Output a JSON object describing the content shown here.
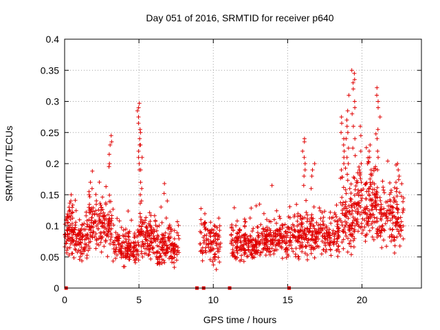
{
  "chart_data": {
    "type": "scatter",
    "title": "Day 051 of 2016, SRMTID for receiver p640",
    "xlabel": "GPS time / hours",
    "ylabel": "SRMTID / TECUs",
    "xlim": [
      0,
      24
    ],
    "ylim": [
      0,
      0.4
    ],
    "x_ticks": [
      0,
      5,
      10,
      15,
      20
    ],
    "x_tick_labels": [
      "0",
      "5",
      "10",
      "15",
      "20"
    ],
    "y_ticks": [
      0,
      0.05,
      0.1,
      0.15,
      0.2,
      0.25,
      0.3,
      0.35,
      0.4
    ],
    "y_tick_labels": [
      "0",
      "0.05",
      "0.1",
      "0.15",
      "0.2",
      "0.25",
      "0.3",
      "0.35",
      "0.4"
    ],
    "grid": true,
    "marker": "+",
    "color": "#e00000",
    "zero_markers_x": [
      0.1,
      8.9,
      9.35,
      11.1,
      15.1
    ],
    "clusters": [
      {
        "x_start": 0.0,
        "x_end": 0.6,
        "n": 70,
        "mean": 0.09,
        "spread": 0.03
      },
      {
        "x_start": 0.6,
        "x_end": 1.6,
        "n": 90,
        "mean": 0.075,
        "spread": 0.025
      },
      {
        "x_start": 1.6,
        "x_end": 3.2,
        "n": 150,
        "mean": 0.1,
        "spread": 0.03
      },
      {
        "x_start": 3.2,
        "x_end": 5.0,
        "n": 150,
        "mean": 0.065,
        "spread": 0.025
      },
      {
        "x_start": 5.0,
        "x_end": 6.2,
        "n": 110,
        "mean": 0.08,
        "spread": 0.03
      },
      {
        "x_start": 6.2,
        "x_end": 7.7,
        "n": 130,
        "mean": 0.065,
        "spread": 0.025
      },
      {
        "x_start": 9.1,
        "x_end": 10.5,
        "n": 110,
        "mean": 0.075,
        "spread": 0.028
      },
      {
        "x_start": 11.2,
        "x_end": 13.0,
        "n": 160,
        "mean": 0.07,
        "spread": 0.022
      },
      {
        "x_start": 13.0,
        "x_end": 15.0,
        "n": 170,
        "mean": 0.075,
        "spread": 0.022
      },
      {
        "x_start": 15.0,
        "x_end": 16.3,
        "n": 110,
        "mean": 0.085,
        "spread": 0.025
      },
      {
        "x_start": 16.3,
        "x_end": 18.5,
        "n": 180,
        "mean": 0.085,
        "spread": 0.028
      },
      {
        "x_start": 18.5,
        "x_end": 19.5,
        "n": 100,
        "mean": 0.11,
        "spread": 0.04
      },
      {
        "x_start": 19.5,
        "x_end": 21.0,
        "n": 160,
        "mean": 0.13,
        "spread": 0.045
      },
      {
        "x_start": 21.0,
        "x_end": 22.8,
        "n": 150,
        "mean": 0.11,
        "spread": 0.035
      }
    ],
    "spikes": [
      {
        "x": 0.35,
        "values": [
          0.15,
          0.14,
          0.13,
          0.125
        ]
      },
      {
        "x": 1.75,
        "values": [
          0.188,
          0.17,
          0.16,
          0.155,
          0.15
        ]
      },
      {
        "x": 3.1,
        "values": [
          0.245,
          0.235,
          0.23,
          0.215,
          0.2,
          0.195
        ]
      },
      {
        "x": 5.0,
        "values": [
          0.297,
          0.29,
          0.285,
          0.275,
          0.265,
          0.255,
          0.24,
          0.23,
          0.22,
          0.21,
          0.2,
          0.19
        ]
      },
      {
        "x": 5.2,
        "values": [
          0.25,
          0.23,
          0.21,
          0.19,
          0.17,
          0.16,
          0.15,
          0.14
        ]
      },
      {
        "x": 6.8,
        "values": [
          0.168,
          0.152,
          0.14
        ]
      },
      {
        "x": 13.9,
        "values": [
          0.165
        ]
      },
      {
        "x": 16.1,
        "values": [
          0.24,
          0.235,
          0.22,
          0.21,
          0.2,
          0.19,
          0.18,
          0.165
        ]
      },
      {
        "x": 16.7,
        "values": [
          0.2,
          0.19,
          0.18,
          0.16
        ]
      },
      {
        "x": 18.7,
        "values": [
          0.275,
          0.265,
          0.25,
          0.24,
          0.23,
          0.22,
          0.21,
          0.2,
          0.19
        ]
      },
      {
        "x": 19.05,
        "values": [
          0.31,
          0.285,
          0.27,
          0.26,
          0.25,
          0.24,
          0.225,
          0.21,
          0.2
        ]
      },
      {
        "x": 19.4,
        "values": [
          0.35,
          0.345,
          0.335,
          0.33,
          0.32,
          0.3,
          0.29,
          0.28,
          0.26,
          0.24,
          0.225
        ]
      },
      {
        "x": 19.9,
        "values": [
          0.26,
          0.245,
          0.22,
          0.2,
          0.19,
          0.17
        ]
      },
      {
        "x": 20.5,
        "values": [
          0.23,
          0.22,
          0.21,
          0.2,
          0.19
        ]
      },
      {
        "x": 21.1,
        "values": [
          0.322,
          0.31,
          0.3,
          0.29,
          0.275,
          0.255,
          0.24,
          0.22,
          0.21,
          0.19
        ]
      },
      {
        "x": 22.4,
        "values": [
          0.2,
          0.19,
          0.18,
          0.17,
          0.16
        ]
      }
    ]
  }
}
